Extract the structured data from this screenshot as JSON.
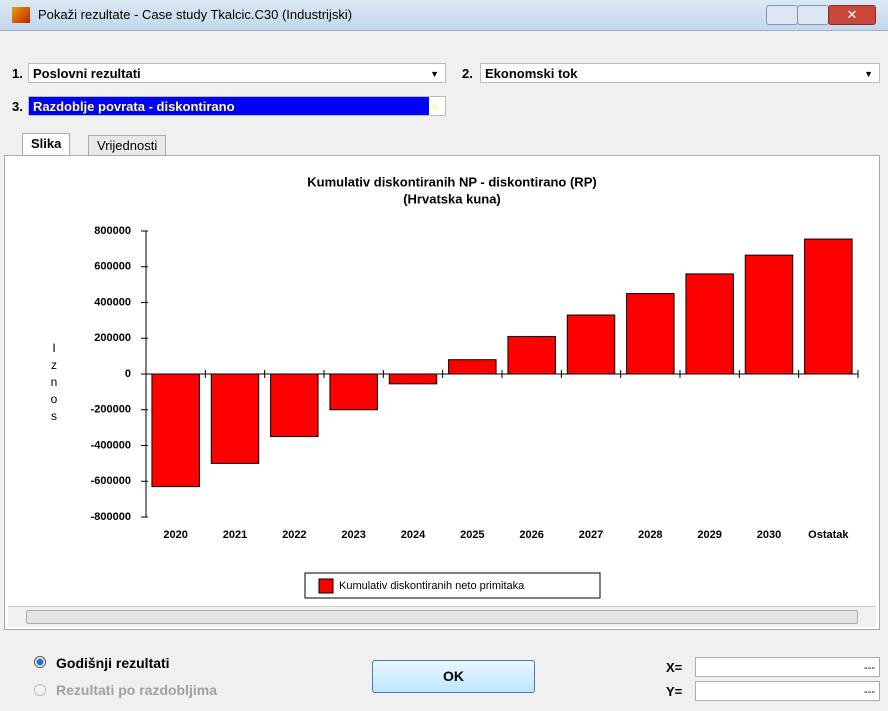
{
  "window": {
    "title": "Pokaži rezultate - Case study Tkalcic.C30 (Industrijski)"
  },
  "selectors": [
    {
      "number": "1.",
      "value": "Poslovni rezultati"
    },
    {
      "number": "2.",
      "value": "Ekonomski tok"
    },
    {
      "number": "3.",
      "value": "Razdoblje povrata - diskontirano"
    }
  ],
  "tabs": [
    "Slika",
    "Vrijednosti"
  ],
  "chart_data": {
    "type": "bar",
    "title": "Kumulativ diskontiranih NP - diskontirano (RP)",
    "subtitle": "(Hrvatska kuna)",
    "ylabel": "Iznos",
    "categories": [
      "2020",
      "2021",
      "2022",
      "2023",
      "2024",
      "2025",
      "2026",
      "2027",
      "2028",
      "2029",
      "2030",
      "Ostatak"
    ],
    "series": [
      {
        "name": "Kumulativ diskontiranih neto primitaka",
        "color": "#ff0000",
        "values": [
          -630000,
          -500000,
          -350000,
          -200000,
          -55000,
          80000,
          210000,
          330000,
          450000,
          560000,
          665000,
          755000
        ]
      }
    ],
    "ylim": [
      -800000,
      800000
    ],
    "yticks": [
      -800000,
      -600000,
      -400000,
      -200000,
      0,
      200000,
      400000,
      600000,
      800000
    ],
    "grid": false,
    "legend": "bottom"
  },
  "options": [
    "Godišnji rezultati",
    "Rezultati po razdobljima"
  ],
  "button": "OK",
  "coords": [
    {
      "label": "X=",
      "value": "---"
    },
    {
      "label": "Y=",
      "value": "---"
    }
  ]
}
